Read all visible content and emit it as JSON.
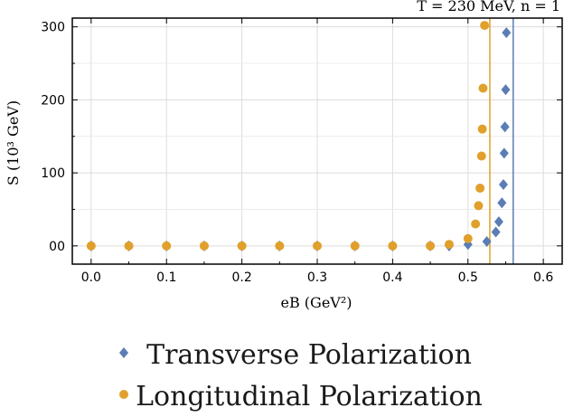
{
  "chart_data": {
    "type": "scatter",
    "annotation": "T = 230 MeV,      n = 1",
    "xlabel": "eB   (GeV²)",
    "ylabel": "S   (10³ GeV)",
    "xlim": [
      -0.025,
      0.625
    ],
    "ylim": [
      -25,
      312
    ],
    "x_ticks": [
      0.0,
      0.1,
      0.2,
      0.3,
      0.4,
      0.5,
      0.6
    ],
    "x_tick_labels": [
      "0.0",
      "0.1",
      "0.2",
      "0.3",
      "0.4",
      "0.5",
      "0.6"
    ],
    "y_ticks": [
      0,
      100,
      200,
      300
    ],
    "y_tick_labels": [
      "00",
      "100",
      "200",
      "300"
    ],
    "grid": true,
    "legend_position": "bottom",
    "series": [
      {
        "name": "Transverse Polarization",
        "marker": "diamond",
        "color": "#5a7db5",
        "x": [
          0.0,
          0.05,
          0.1,
          0.15,
          0.2,
          0.25,
          0.3,
          0.35,
          0.4,
          0.45,
          0.475,
          0.5,
          0.525,
          0.537,
          0.541,
          0.545,
          0.547,
          0.548,
          0.549,
          0.55,
          0.551
        ],
        "y": [
          0,
          0,
          0,
          0,
          0,
          0,
          0,
          0,
          0,
          0,
          0,
          2,
          6,
          19,
          33,
          59,
          84,
          127,
          163,
          214,
          292
        ]
      },
      {
        "name": "Longitudinal Polarization",
        "marker": "circle",
        "color": "#e1a02c",
        "x": [
          0.0,
          0.05,
          0.1,
          0.15,
          0.2,
          0.25,
          0.3,
          0.35,
          0.4,
          0.45,
          0.475,
          0.5,
          0.51,
          0.514,
          0.516,
          0.518,
          0.519,
          0.52,
          0.522
        ],
        "y": [
          0,
          0,
          0,
          0,
          0,
          0,
          0,
          0,
          0,
          0,
          2,
          10,
          30,
          55,
          79,
          123,
          160,
          216,
          302
        ]
      }
    ],
    "vertical_lines": [
      {
        "x": 0.529,
        "color": "#e1a02c"
      },
      {
        "x": 0.56,
        "color": "#5a7db5"
      }
    ]
  }
}
